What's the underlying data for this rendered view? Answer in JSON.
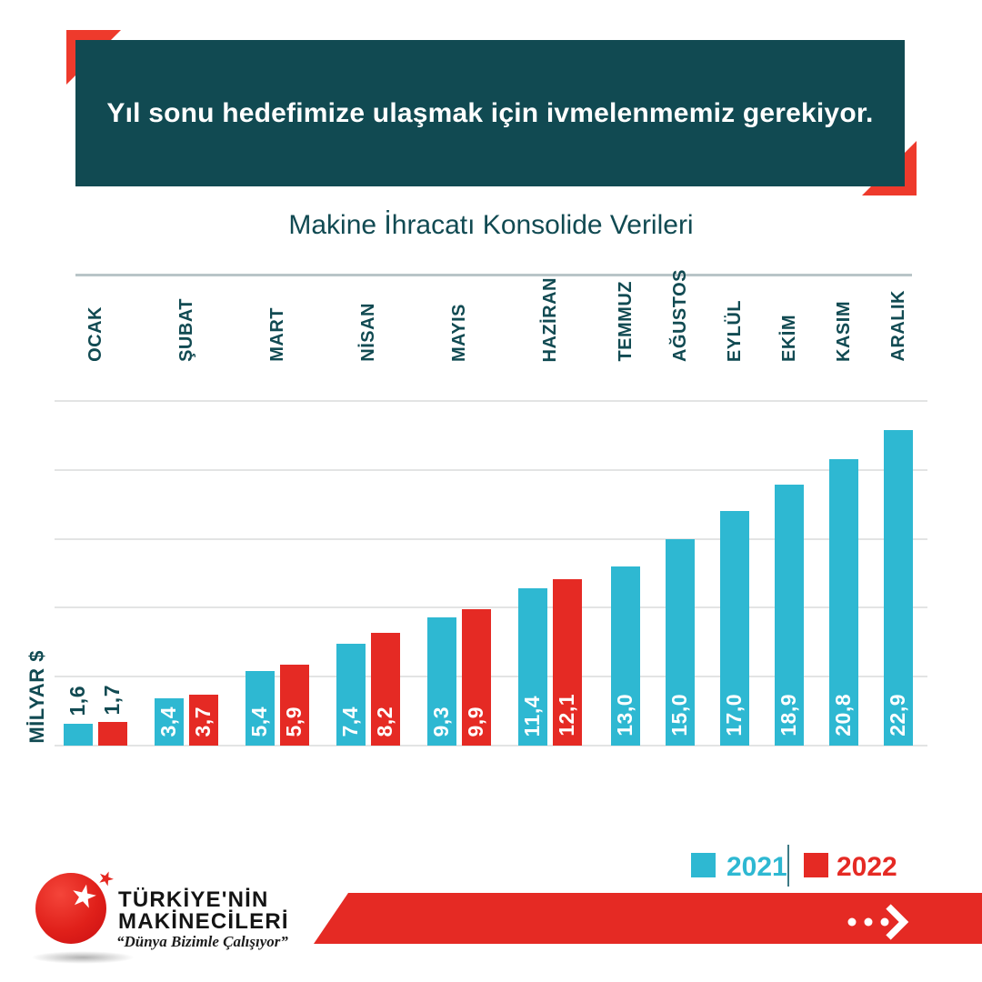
{
  "header": {
    "title": "Yıl sonu hedefimize ulaşmak için ivmelenmemiz gerekiyor."
  },
  "chart_data": {
    "type": "bar",
    "title": "Makine İhracatı Konsolide Verileri",
    "ylabel": "MİLYAR $",
    "categories": [
      "OCAK",
      "ŞUBAT",
      "MART",
      "NİSAN",
      "MAYIS",
      "HAZİRAN",
      "TEMMUZ",
      "AĞUSTOS",
      "EYLÜL",
      "EKİM",
      "KASIM",
      "ARALIK"
    ],
    "series": [
      {
        "name": "2021",
        "color": "#2eb8d2",
        "values": [
          1.6,
          3.4,
          5.4,
          7.4,
          9.3,
          11.4,
          13.0,
          15.0,
          17.0,
          18.9,
          20.8,
          22.9
        ],
        "labels": [
          "1,6",
          "3,4",
          "5,4",
          "7,4",
          "9,3",
          "11,4",
          "13,0",
          "15,0",
          "17,0",
          "18,9",
          "20,8",
          "22,9"
        ]
      },
      {
        "name": "2022",
        "color": "#e52a24",
        "values": [
          1.7,
          3.7,
          5.9,
          8.2,
          9.9,
          12.1
        ],
        "labels": [
          "1,7",
          "3,7",
          "5,9",
          "8,2",
          "9,9",
          "12,1"
        ]
      }
    ],
    "ylim": [
      0,
      25
    ],
    "grid_step": 5,
    "grid": true,
    "legend_position": "bottom-right",
    "value_label_decimal": "comma"
  },
  "footer": {
    "logo": {
      "line1": "TÜRKİYE'NİN",
      "line2": "MAKİNECİLERİ",
      "tagline": "“Dünya Bizimle Çalışıyor”",
      "star_icon": "★"
    }
  },
  "colors": {
    "header_teal": "#114a52",
    "accent_red_corner": "#ee3a2c",
    "bar_cyan": "#2eb8d2",
    "bar_red": "#e52a24",
    "gridline": "#e3e4e4"
  }
}
